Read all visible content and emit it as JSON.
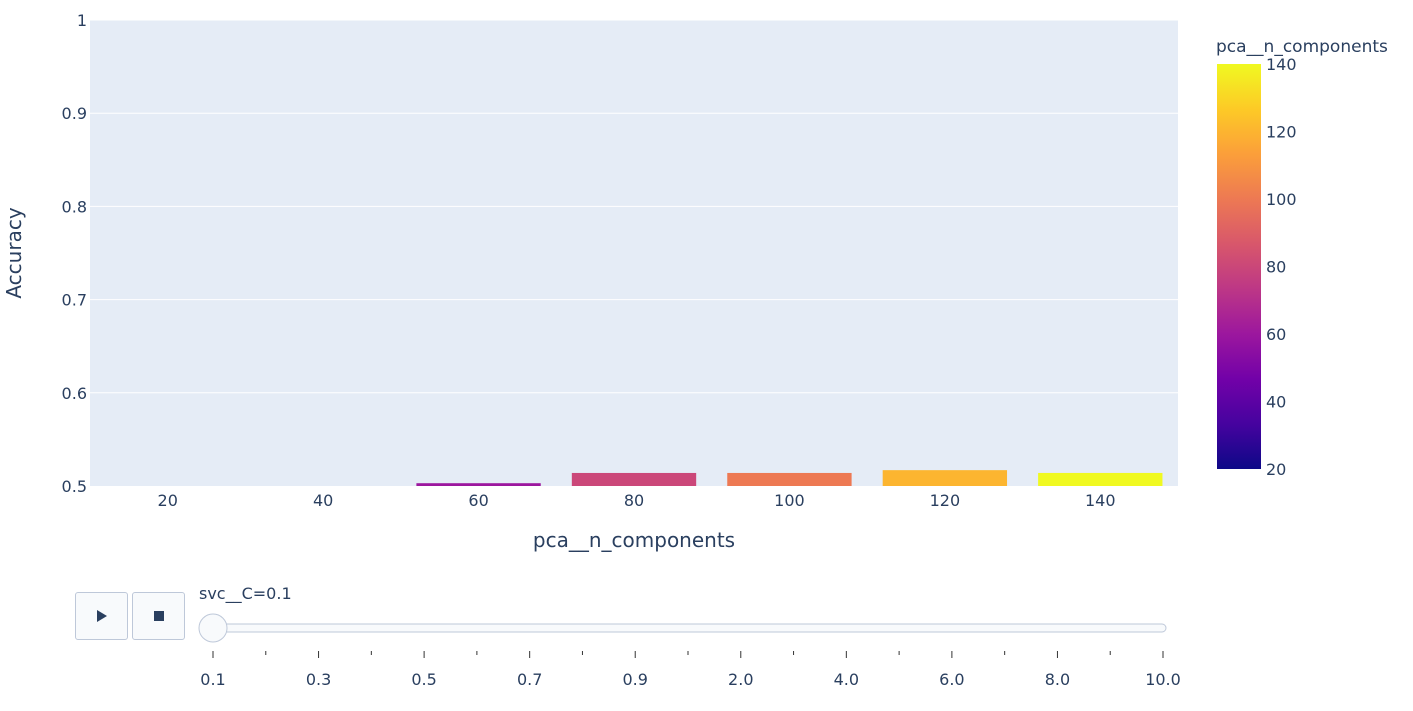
{
  "chart_data": {
    "type": "bar",
    "xlabel": "pca__n_components",
    "ylabel": "Accuracy",
    "categories": [
      "20",
      "40",
      "60",
      "80",
      "100",
      "120",
      "140"
    ],
    "x": [
      20,
      40,
      60,
      80,
      100,
      120,
      140
    ],
    "values": [
      0.5,
      0.5,
      0.503,
      0.514,
      0.514,
      0.517,
      0.514
    ],
    "ylim": [
      0.5,
      1
    ],
    "yticks": [
      "0.5",
      "0.6",
      "0.7",
      "0.8",
      "0.9",
      "1"
    ],
    "yticks_values": [
      0.5,
      0.6,
      0.7,
      0.8,
      0.9,
      1.0
    ],
    "grid": true,
    "colorbar": {
      "title": "pca__n_components",
      "range": [
        20,
        140
      ],
      "ticks": [
        "20",
        "40",
        "60",
        "80",
        "100",
        "120",
        "140"
      ],
      "ticks_values": [
        20,
        40,
        60,
        80,
        100,
        120,
        140
      ],
      "colorscale": [
        "#0d0887",
        "#46039f",
        "#7201a8",
        "#9c179e",
        "#bd3786",
        "#d8576b",
        "#ed7953",
        "#fb9f3a",
        "#fdca26",
        "#f0f921"
      ]
    },
    "legend": "colorbar-right"
  },
  "slider": {
    "current_label": "svc__C=0.1",
    "steps": [
      "0.1",
      "0.3",
      "0.5",
      "0.7",
      "0.9",
      "2.0",
      "4.0",
      "6.0",
      "8.0",
      "10.0"
    ],
    "active_index": 0
  },
  "controls": {
    "play_icon": "play-icon",
    "stop_icon": "stop-icon"
  },
  "colors": {
    "plot_bg": "#e5ecf6",
    "text": "#2a3f5f"
  }
}
